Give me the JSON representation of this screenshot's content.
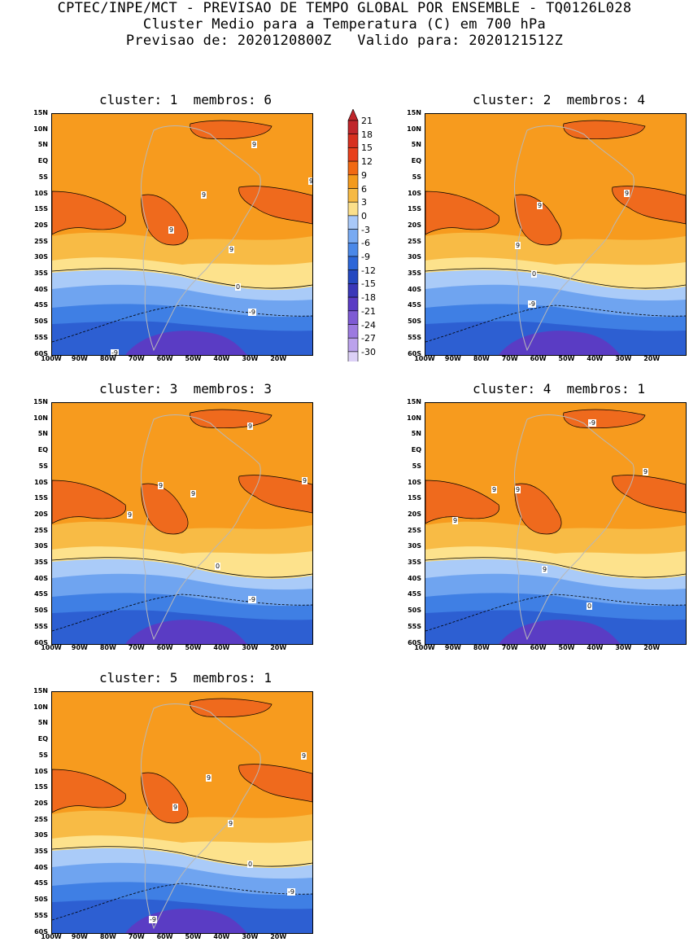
{
  "header": {
    "line1": "CPTEC/INPE/MCT - PREVISAO DE TEMPO GLOBAL POR ENSEMBLE - TQ0126L028",
    "line2": "Cluster Medio para a Temperatura (C) em 700 hPa",
    "line3": "Previsao de: 2020120800Z   Valido para: 2020121512Z"
  },
  "lat_labels": [
    "15N",
    "10N",
    "5N",
    "EQ",
    "5S",
    "10S",
    "15S",
    "20S",
    "25S",
    "30S",
    "35S",
    "40S",
    "45S",
    "50S",
    "55S",
    "60S"
  ],
  "lon_labels": [
    "100W",
    "90W",
    "80W",
    "70W",
    "60W",
    "50W",
    "40W",
    "30W",
    "20W"
  ],
  "colorbar": {
    "labels": [
      "21",
      "18",
      "15",
      "12",
      "9",
      "6",
      "3",
      "0",
      "-3",
      "-6",
      "-9",
      "-12",
      "-15",
      "-18",
      "-21",
      "-24",
      "-27",
      "-30"
    ],
    "colors": [
      "#c0262b",
      "#d7301f",
      "#e8401c",
      "#f16913",
      "#f39a1c",
      "#f6b943",
      "#fbdf8a",
      "#a8c8f8",
      "#78aaf2",
      "#4a88e8",
      "#2c66d8",
      "#2448c0",
      "#3a37b8",
      "#5a3cc4",
      "#7e5ad4",
      "#9c7ae0",
      "#bba2ec",
      "#dcd0f6"
    ]
  },
  "palette": {
    "warm9": "#ef6a1d",
    "warm6": "#f79b1e",
    "warm3": "#f8bb45",
    "warm0": "#fde28c",
    "cold3": "#aacbf8",
    "cold6": "#6fa4f0",
    "cold9": "#3f7fe4",
    "cold12": "#2d5fd2",
    "cold15": "#5a3cc4"
  },
  "panels": [
    {
      "title": "cluster: 1  membros: 6",
      "labels": [
        {
          "t": "9"
        },
        {
          "t": "9"
        },
        {
          "t": "9"
        },
        {
          "t": "9"
        },
        {
          "t": "9"
        },
        {
          "t": "0"
        },
        {
          "t": "-9"
        },
        {
          "t": "-9"
        }
      ]
    },
    {
      "title": "cluster: 2  membros: 4",
      "labels": [
        {
          "t": "9"
        },
        {
          "t": "9"
        },
        {
          "t": "9"
        },
        {
          "t": "0"
        },
        {
          "t": "-9"
        }
      ]
    },
    {
      "title": "cluster: 3  membros: 3",
      "labels": [
        {
          "t": "9"
        },
        {
          "t": "9"
        },
        {
          "t": "9"
        },
        {
          "t": "9"
        },
        {
          "t": "9"
        },
        {
          "t": "0"
        },
        {
          "t": "-9"
        }
      ]
    },
    {
      "title": "cluster: 4  membros: 1",
      "labels": [
        {
          "t": "9"
        },
        {
          "t": "9"
        },
        {
          "t": "9"
        },
        {
          "t": "9"
        },
        {
          "t": "9"
        },
        {
          "t": "0"
        },
        {
          "t": "-9"
        }
      ]
    },
    {
      "title": "cluster: 5  membros: 1",
      "labels": [
        {
          "t": "9"
        },
        {
          "t": "9"
        },
        {
          "t": "9"
        },
        {
          "t": "9"
        },
        {
          "t": "0"
        },
        {
          "t": "-9"
        },
        {
          "t": "-9"
        }
      ]
    }
  ]
}
